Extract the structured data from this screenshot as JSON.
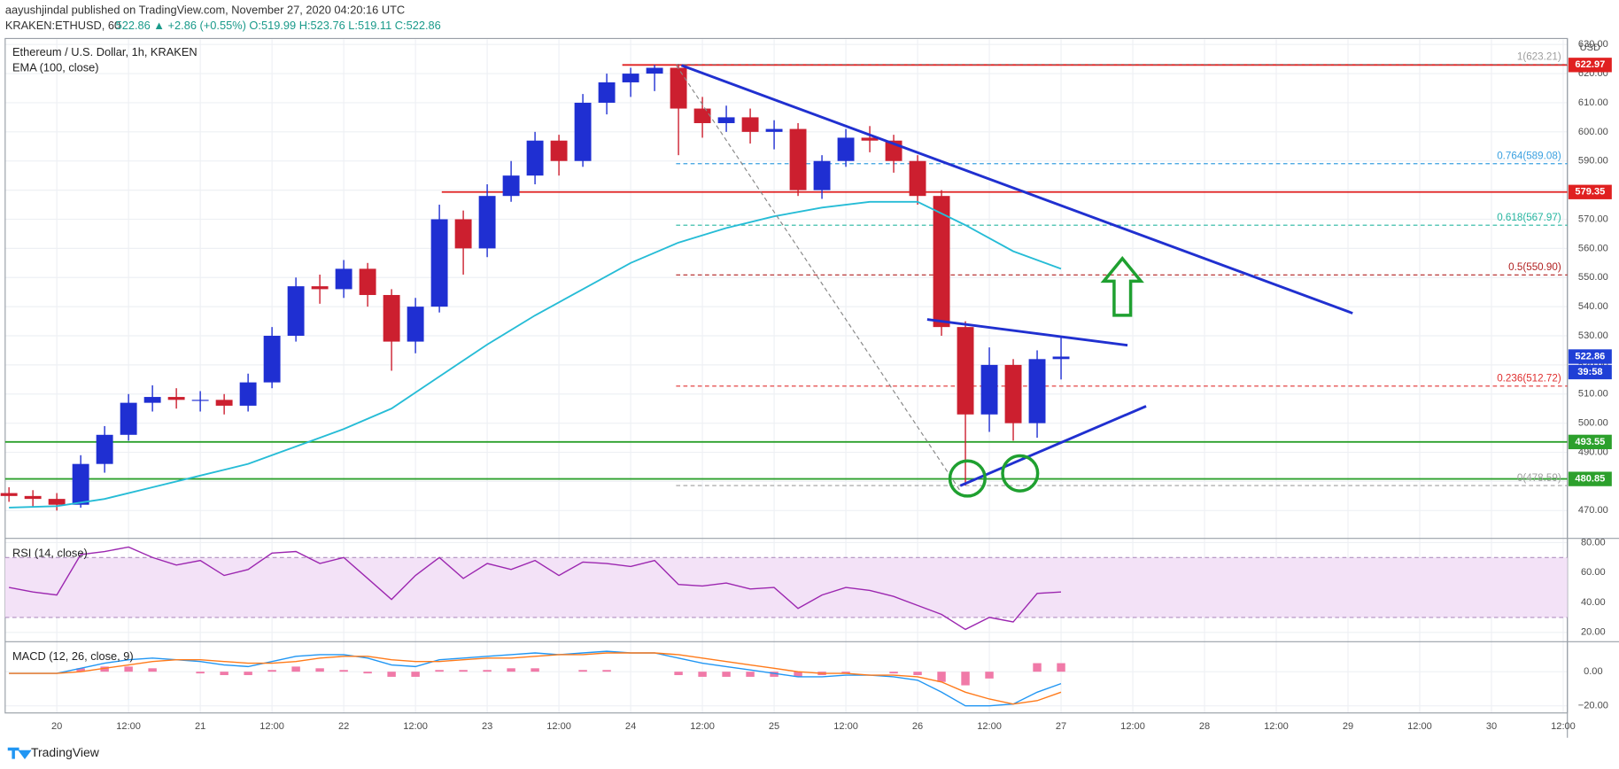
{
  "header": {
    "published": "aayushjindal published on TradingView.com, November 27, 2020 04:20:16 UTC",
    "symbol": "KRAKEN:ETHUSD, 60",
    "quote": "522.86 ▲ +2.86 (+0.55%) O:519.99 H:523.76 L:519.11 C:522.86"
  },
  "footer": {
    "brand": "TradingView"
  },
  "chart_data": {
    "type": "candlestick",
    "title": "Ethereum / U.S. Dollar, 1h, KRAKEN",
    "currency": "USD",
    "up_color": "#1f2fd2",
    "down_color": "#cc1f2f",
    "x": [
      -8,
      -4,
      0,
      4,
      8,
      12,
      16,
      20,
      24,
      28,
      32,
      36,
      40,
      44,
      48,
      52,
      56,
      60,
      64,
      68,
      72,
      76,
      80,
      84,
      88,
      92,
      96,
      100,
      104,
      108,
      112,
      116,
      120,
      124,
      128,
      132,
      136,
      140,
      144,
      148,
      152,
      156,
      160,
      164,
      168
    ],
    "open": [
      476,
      475,
      474,
      472,
      486,
      496,
      507,
      509,
      508,
      508,
      506,
      514,
      530,
      547,
      546,
      553,
      544,
      528,
      540,
      570,
      560,
      578,
      585,
      597,
      590,
      610,
      617,
      620,
      622,
      608,
      603,
      605,
      600,
      601,
      580,
      590,
      598,
      597,
      590,
      578,
      533,
      503,
      520,
      500,
      522
    ],
    "high": [
      478,
      477,
      476,
      489,
      499,
      510,
      513,
      512,
      511,
      510,
      517,
      533,
      550,
      551,
      556,
      555,
      546,
      543,
      575,
      573,
      582,
      590,
      600,
      599,
      613,
      620,
      622,
      623,
      623.21,
      612,
      609,
      608,
      604,
      603,
      592,
      601,
      602,
      599,
      592,
      580,
      535,
      526,
      522,
      525,
      530
    ],
    "low": [
      473,
      471,
      470,
      471,
      483,
      494,
      504,
      505,
      504,
      503,
      504,
      512,
      528,
      541,
      543,
      540,
      518,
      524,
      538,
      551,
      557,
      576,
      582,
      585,
      588,
      606,
      612,
      614,
      592,
      598,
      600,
      596,
      594,
      578,
      577,
      588,
      593,
      586,
      575,
      530,
      478.59,
      497,
      494,
      495,
      515
    ],
    "close": [
      475,
      474,
      472,
      486,
      496,
      507,
      509,
      508,
      508,
      506,
      514,
      530,
      547,
      546,
      553,
      544,
      528,
      540,
      570,
      560,
      578,
      585,
      597,
      590,
      610,
      617,
      620,
      622,
      608,
      603,
      605,
      600,
      601,
      580,
      590,
      598,
      597,
      590,
      578,
      533,
      503,
      520,
      500,
      522,
      522.86
    ],
    "xlim": [
      -8.64,
      252.7
    ],
    "xticks": [
      {
        "value": 0,
        "label": "20"
      },
      {
        "value": 12,
        "label": "12:00"
      },
      {
        "value": 24,
        "label": "21"
      },
      {
        "value": 36,
        "label": "12:00"
      },
      {
        "value": 48,
        "label": "22"
      },
      {
        "value": 60,
        "label": "12:00"
      },
      {
        "value": 72,
        "label": "23"
      },
      {
        "value": 84,
        "label": "12:00"
      },
      {
        "value": 96,
        "label": "24"
      },
      {
        "value": 108,
        "label": "12:00"
      },
      {
        "value": 120,
        "label": "25"
      },
      {
        "value": 132,
        "label": "12:00"
      },
      {
        "value": 144,
        "label": "26"
      },
      {
        "value": 156,
        "label": "12:00"
      },
      {
        "value": 168,
        "label": "27"
      },
      {
        "value": 180,
        "label": "12:00"
      },
      {
        "value": 192,
        "label": "28"
      },
      {
        "value": 204,
        "label": "12:00"
      },
      {
        "value": 216,
        "label": "29"
      },
      {
        "value": 228,
        "label": "12:00"
      },
      {
        "value": 240,
        "label": "30"
      },
      {
        "value": 252,
        "label": "12:00"
      }
    ],
    "ylim": [
      460.8,
      631.7
    ],
    "yticks": [
      {
        "value": 470,
        "label": "470.00"
      },
      {
        "value": 480,
        "label": "480.00"
      },
      {
        "value": 490,
        "label": "490.00"
      },
      {
        "value": 500,
        "label": "500.00"
      },
      {
        "value": 510,
        "label": "510.00"
      },
      {
        "value": 520,
        "label": "520.00"
      },
      {
        "value": 530,
        "label": "530.00"
      },
      {
        "value": 540,
        "label": "540.00"
      },
      {
        "value": 550,
        "label": "550.00"
      },
      {
        "value": 560,
        "label": "560.00"
      },
      {
        "value": 570,
        "label": "570.00"
      },
      {
        "value": 580,
        "label": "580.00"
      },
      {
        "value": 590,
        "label": "590.00"
      },
      {
        "value": 600,
        "label": "600.00"
      },
      {
        "value": 610,
        "label": "610.00"
      },
      {
        "value": 620,
        "label": "620.00"
      },
      {
        "value": 630,
        "label": "630.00"
      }
    ],
    "grid": true,
    "ema": {
      "name": "EMA (100, close)",
      "color": "#26bcd6",
      "x": [
        -8,
        0,
        8,
        16,
        24,
        32,
        40,
        48,
        56,
        64,
        72,
        80,
        88,
        96,
        104,
        112,
        120,
        128,
        136,
        144,
        152,
        160,
        168
      ],
      "values": [
        471,
        471.5,
        474,
        478,
        482,
        486,
        492,
        498,
        505,
        516,
        527,
        537,
        546,
        555,
        562,
        567,
        571,
        574,
        576,
        576,
        568,
        559,
        553
      ]
    },
    "levels": [
      {
        "value": 622.97,
        "color": "#e02020",
        "from": 94.6
      },
      {
        "value": 579.35,
        "color": "#e02020",
        "from": 64.4
      },
      {
        "value": 493.55,
        "color": "#2ca02c"
      },
      {
        "value": 480.85,
        "color": "#2ca02c"
      }
    ],
    "fib": [
      {
        "label": "1(623.21)",
        "value": 623.21,
        "color": "#9e9e9e",
        "from": 103.6
      },
      {
        "label": "0.764(589.08)",
        "value": 589.08,
        "color": "#3aa0e0",
        "from": 103.6
      },
      {
        "label": "0.618(567.97)",
        "value": 567.97,
        "color": "#26b5a0",
        "from": 103.6
      },
      {
        "label": "0.5(550.90)",
        "value": 550.9,
        "color": "#b02020",
        "from": 103.6
      },
      {
        "label": "0.236(512.72)",
        "value": 512.72,
        "color": "#e03030",
        "from": 103.6
      },
      {
        "label": "0(478.59)",
        "value": 478.59,
        "color": "#9e9e9e",
        "from": 103.6
      }
    ],
    "last_price": 522.86,
    "last_color": "#1f3fd6",
    "countdown": "39:58",
    "rsi": {
      "name": "RSI (14, close)",
      "color": "#9c27b0",
      "band": [
        30,
        70
      ],
      "band_color": "#f3e2f7",
      "ylim": [
        14.5,
        82.1
      ],
      "yticks": [
        {
          "value": 20,
          "label": "20.00"
        },
        {
          "value": 40,
          "label": "40.00"
        },
        {
          "value": 60,
          "label": "60.00"
        },
        {
          "value": 80,
          "label": "80.00"
        }
      ],
      "values": [
        50,
        47,
        45,
        72,
        74,
        77,
        70,
        65,
        68,
        58,
        62,
        73,
        74,
        66,
        70,
        56,
        42,
        58,
        70,
        56,
        66,
        62,
        68,
        58,
        67,
        66,
        64,
        68,
        52,
        51,
        53,
        49,
        50,
        36,
        45,
        50,
        48,
        44,
        38,
        32,
        22,
        30,
        27,
        46,
        47
      ]
    },
    "macd": {
      "name": "MACD (12, 26, close, 9)",
      "ylim": [
        -24.2,
        17
      ],
      "yticks": [
        {
          "value": -20,
          "label": "−20.00"
        },
        {
          "value": 0,
          "label": "0.00"
        }
      ],
      "histogram": {
        "color": "#f07aa8",
        "values": [
          0,
          0,
          0,
          2,
          3,
          3,
          2,
          0,
          -1,
          -2,
          -2,
          1,
          3,
          2,
          1,
          -1,
          -3,
          -3,
          1,
          1,
          1,
          2,
          2,
          0,
          1,
          1,
          0,
          0,
          -2,
          -3,
          -3,
          -3,
          -3,
          -3,
          -2,
          -1,
          0,
          -1,
          -2,
          -6,
          -8,
          -4,
          0,
          5,
          5
        ]
      },
      "macd_line": {
        "color": "#2196f3",
        "values": [
          -1,
          -1,
          -1,
          2,
          5,
          7,
          8,
          7,
          6,
          4,
          3,
          6,
          9,
          10,
          10,
          8,
          4,
          3,
          7,
          8,
          9,
          10,
          11,
          10,
          11,
          12,
          11,
          11,
          8,
          5,
          3,
          1,
          -1,
          -3,
          -3,
          -2,
          -2,
          -3,
          -5,
          -12,
          -20,
          -20,
          -19,
          -12,
          -7
        ]
      },
      "signal_line": {
        "color": "#ff7a1a",
        "values": [
          -1,
          -1,
          -1,
          0,
          2,
          4,
          6,
          7,
          7,
          6,
          5,
          5,
          6,
          8,
          9,
          9,
          7,
          6,
          6,
          7,
          8,
          8,
          9,
          10,
          10,
          11,
          11,
          11,
          10,
          8,
          6,
          4,
          2,
          0,
          -1,
          -1,
          -2,
          -2,
          -3,
          -6,
          -12,
          -16,
          -19,
          -17,
          -12
        ]
      }
    }
  }
}
